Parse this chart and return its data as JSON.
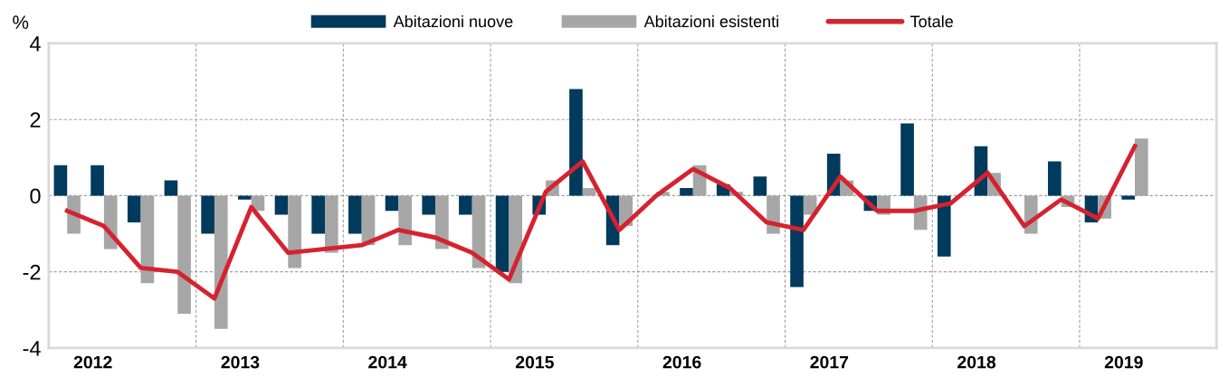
{
  "chart_data": {
    "type": "bar",
    "ylabel": "%",
    "x": [
      2012.125,
      2012.375,
      2012.625,
      2012.875,
      2013.125,
      2013.375,
      2013.625,
      2013.875,
      2014.125,
      2014.375,
      2014.625,
      2014.875,
      2015.125,
      2015.375,
      2015.625,
      2015.875,
      2016.125,
      2016.375,
      2016.625,
      2016.875,
      2017.125,
      2017.375,
      2017.625,
      2017.875,
      2018.125,
      2018.375,
      2018.625,
      2018.875,
      2019.125,
      2019.375
    ],
    "series": [
      {
        "name": "Abitazioni nuove",
        "color": "#003a5c",
        "values": [
          0.8,
          0.8,
          -0.7,
          0.4,
          -1.0,
          -0.1,
          -0.5,
          -1.0,
          -1.0,
          -0.4,
          -0.5,
          -0.5,
          -2.0,
          -0.5,
          2.8,
          -1.3,
          0.0,
          0.2,
          0.3,
          0.5,
          -2.4,
          1.1,
          -0.4,
          1.9,
          -1.6,
          1.3,
          0.0,
          0.9,
          -0.7,
          -0.1
        ]
      },
      {
        "name": "Abitazioni esistenti",
        "color": "#a6a6a6",
        "values": [
          -1.0,
          -1.4,
          -2.3,
          -3.1,
          -3.5,
          -0.4,
          -1.9,
          -1.5,
          -1.3,
          -1.3,
          -1.4,
          -1.9,
          -2.3,
          0.4,
          0.2,
          -0.8,
          0.1,
          0.8,
          0.1,
          -1.0,
          -0.5,
          0.4,
          -0.5,
          -0.9,
          0.0,
          0.6,
          -1.0,
          -0.3,
          -0.6,
          1.5
        ]
      },
      {
        "name": "Totale",
        "type": "line",
        "color": "#d6222f",
        "values": [
          -0.4,
          -0.8,
          -1.9,
          -2.0,
          -2.7,
          -0.3,
          -1.5,
          -1.4,
          -1.3,
          -0.9,
          -1.1,
          -1.5,
          -2.2,
          0.1,
          0.9,
          -0.9,
          0.0,
          0.7,
          0.2,
          -0.7,
          -0.9,
          0.5,
          -0.4,
          -0.4,
          -0.2,
          0.6,
          -0.8,
          -0.1,
          -0.6,
          1.3
        ]
      }
    ],
    "xlim": [
      2012,
      2019.93
    ],
    "xticks": [
      {
        "value": 2012.3,
        "label": "2012"
      },
      {
        "value": 2013.3,
        "label": "2013"
      },
      {
        "value": 2014.3,
        "label": "2014"
      },
      {
        "value": 2015.3,
        "label": "2015"
      },
      {
        "value": 2016.3,
        "label": "2016"
      },
      {
        "value": 2017.3,
        "label": "2017"
      },
      {
        "value": 2018.3,
        "label": "2018"
      },
      {
        "value": 2019.3,
        "label": "2019"
      }
    ],
    "ylim": [
      -4,
      4
    ],
    "yticks": [
      {
        "value": -4,
        "label": "-4"
      },
      {
        "value": -2,
        "label": "-2"
      },
      0,
      2,
      4
    ],
    "ref_lines": [
      {
        "axis": "x",
        "value": 2013,
        "color": "#a0a0a0",
        "line_style": "dashed"
      },
      {
        "axis": "x",
        "value": 2014,
        "color": "#a0a0a0",
        "line_style": "dashed"
      },
      {
        "axis": "x",
        "value": 2015,
        "color": "#a0a0a0",
        "line_style": "dashed"
      },
      {
        "axis": "x",
        "value": 2016,
        "color": "#a0a0a0",
        "line_style": "dashed"
      },
      {
        "axis": "x",
        "value": 2017,
        "color": "#a0a0a0",
        "line_style": "dashed"
      },
      {
        "axis": "x",
        "value": 2018,
        "color": "#a0a0a0",
        "line_style": "dashed"
      },
      {
        "axis": "x",
        "value": 2019,
        "color": "#a0a0a0",
        "line_style": "dashed"
      }
    ],
    "grid": "y",
    "legend": "top",
    "marker": "none",
    "line_style": "solid"
  }
}
